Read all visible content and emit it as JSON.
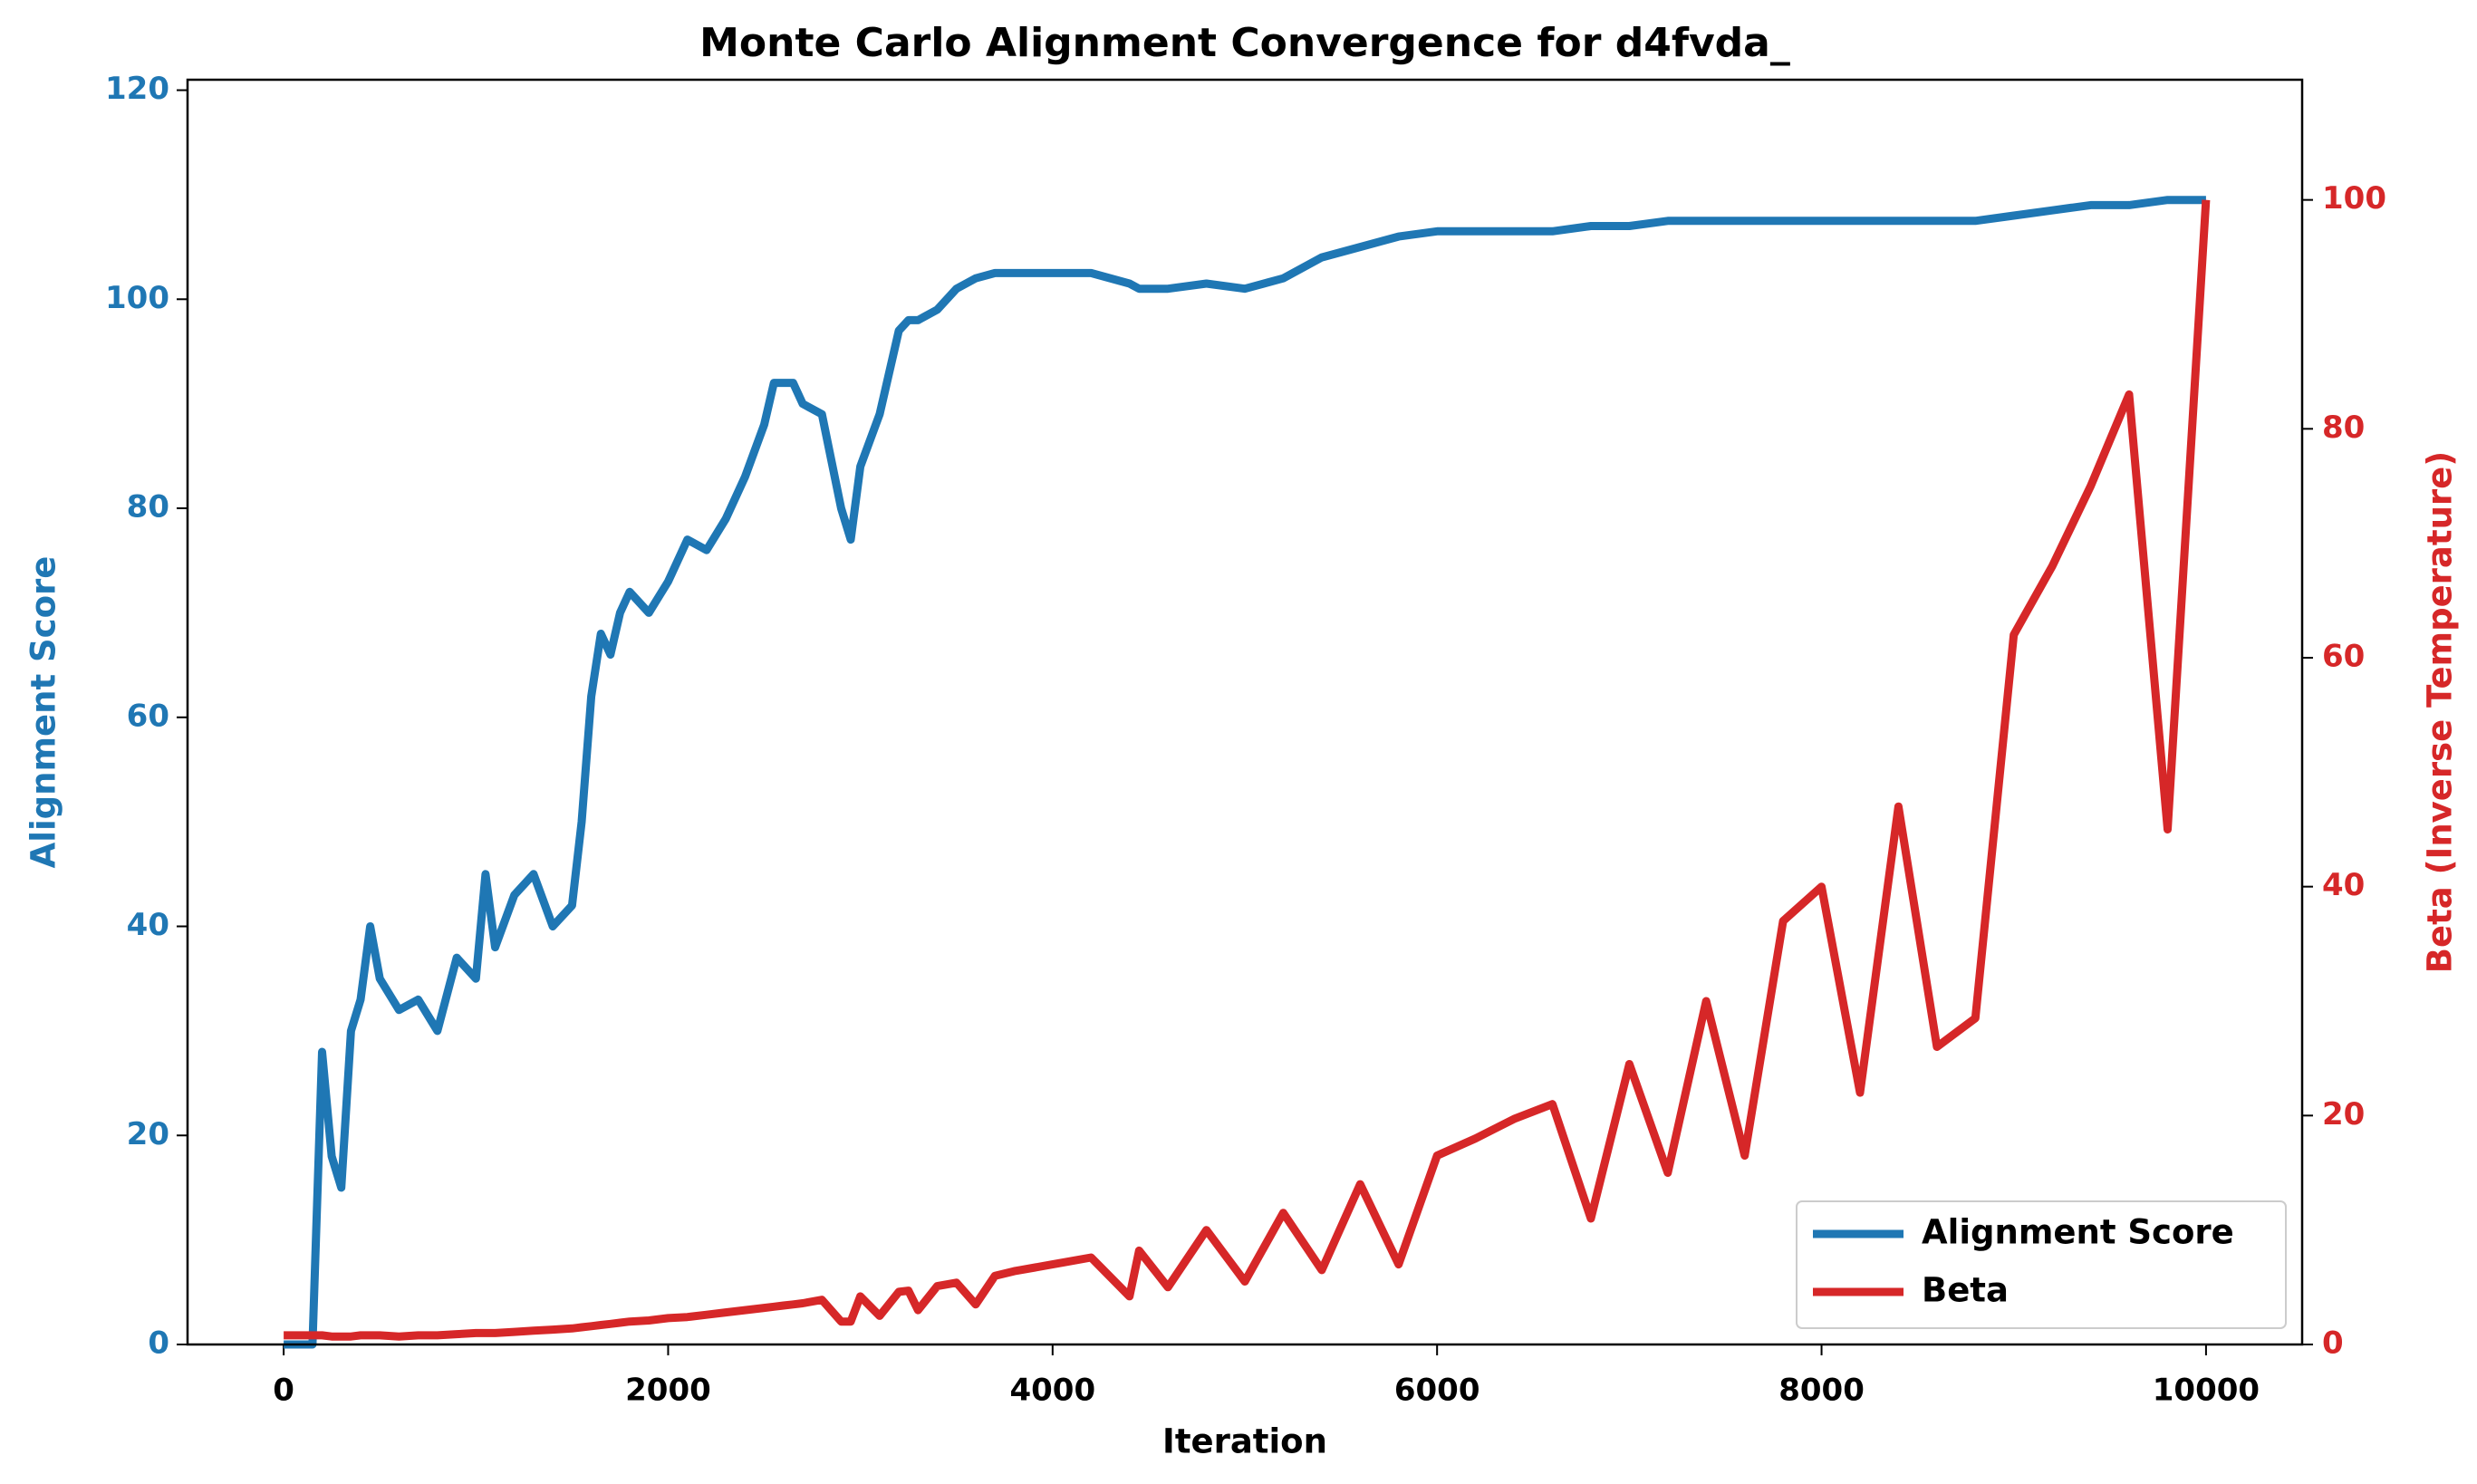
{
  "chart_data": {
    "type": "line",
    "title": "Monte Carlo Alignment Convergence for d4fvda_",
    "x_label": "Iteration",
    "y_label": "Alignment Score",
    "y2_label": "Beta (Inverse Temperature)",
    "x": [
      0,
      150,
      200,
      250,
      300,
      350,
      400,
      450,
      500,
      600,
      700,
      800,
      900,
      1000,
      1050,
      1100,
      1200,
      1300,
      1400,
      1500,
      1550,
      1600,
      1650,
      1700,
      1750,
      1800,
      1900,
      2000,
      2100,
      2200,
      2300,
      2400,
      2500,
      2550,
      2600,
      2650,
      2700,
      2800,
      2900,
      2950,
      3000,
      3100,
      3200,
      3250,
      3300,
      3400,
      3500,
      3600,
      3700,
      3800,
      4000,
      4200,
      4400,
      4450,
      4600,
      4800,
      5000,
      5200,
      5400,
      5600,
      5800,
      6000,
      6200,
      6400,
      6600,
      6800,
      7000,
      7200,
      7400,
      7600,
      7800,
      8000,
      8200,
      8400,
      8600,
      8800,
      9000,
      9200,
      9400,
      9600,
      9800,
      10000
    ],
    "series": [
      {
        "name": "Alignment Score",
        "color": "#1f77b4",
        "axis": "y",
        "values": [
          0,
          0,
          28,
          18,
          15,
          30,
          33,
          40,
          35,
          32,
          33,
          30,
          37,
          35,
          45,
          38,
          43,
          45,
          40,
          42,
          50,
          62,
          68,
          66,
          70,
          72,
          70,
          73,
          77,
          76,
          79,
          83,
          88,
          92,
          92,
          92,
          90,
          89,
          80,
          77,
          84,
          89,
          97,
          98,
          98,
          99,
          101,
          102,
          102.5,
          102.5,
          102.5,
          102.5,
          101.5,
          101,
          101,
          101.5,
          101,
          102,
          104,
          105,
          106,
          106.5,
          106.5,
          106.5,
          106.5,
          107,
          107,
          107.5,
          107.5,
          107.5,
          107.5,
          107.5,
          107.5,
          107.5,
          107.5,
          107.5,
          108,
          108.5,
          109,
          109,
          109.5,
          109.5
        ]
      },
      {
        "name": "Beta",
        "color": "#d62728",
        "axis": "y2",
        "values": [
          0.8,
          0.8,
          0.8,
          0.7,
          0.7,
          0.7,
          0.8,
          0.8,
          0.8,
          0.7,
          0.8,
          0.8,
          0.9,
          1.0,
          1.0,
          1.0,
          1.1,
          1.2,
          1.3,
          1.4,
          1.5,
          1.6,
          1.7,
          1.8,
          1.9,
          2.0,
          2.1,
          2.3,
          2.4,
          2.6,
          2.8,
          3.0,
          3.2,
          3.3,
          3.4,
          3.5,
          3.6,
          3.9,
          2.0,
          2.0,
          4.2,
          2.5,
          4.6,
          4.7,
          3.0,
          5.1,
          5.4,
          3.5,
          6.0,
          6.4,
          7.0,
          7.6,
          4.2,
          8.2,
          5.0,
          10.0,
          5.5,
          11.5,
          6.5,
          14,
          7.0,
          16.5,
          18,
          19.7,
          21,
          11,
          24.5,
          15,
          30,
          16.5,
          37,
          40,
          22,
          47,
          26,
          28.5,
          62,
          68,
          75,
          83,
          45,
          100
        ]
      }
    ],
    "xlim": [
      -500,
      10500
    ],
    "xticks": [
      0,
      2000,
      4000,
      6000,
      8000,
      10000
    ],
    "ylim": [
      0,
      121
    ],
    "yticks": [
      0,
      20,
      40,
      60,
      80,
      100,
      120
    ],
    "y2lim": [
      0,
      110.5
    ],
    "y2ticks": [
      0,
      20,
      40,
      60,
      80,
      100
    ],
    "legend": "lower right"
  }
}
